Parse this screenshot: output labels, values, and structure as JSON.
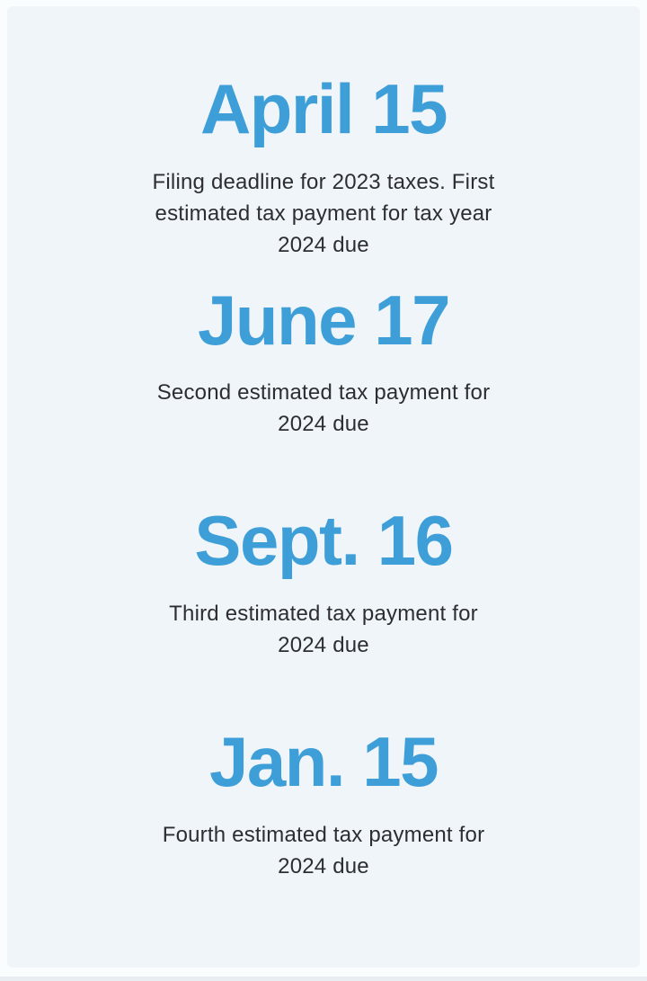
{
  "colors": {
    "accent": "#3e9ed8",
    "text": "#2d2e33",
    "card_background": "#eff5f8",
    "page_background": "#fafdfe"
  },
  "sections": [
    {
      "date": "April 15",
      "description": "Filing deadline for 2023 taxes. First\nestimated tax payment for tax year\n2024 due"
    },
    {
      "date": "June 17",
      "description": "Second estimated tax payment for\n2024 due"
    },
    {
      "date": "Sept. 16",
      "description": "Third estimated tax payment for\n2024 due"
    },
    {
      "date": "Jan. 15",
      "description": "Fourth estimated tax payment for\n2024 due"
    }
  ]
}
